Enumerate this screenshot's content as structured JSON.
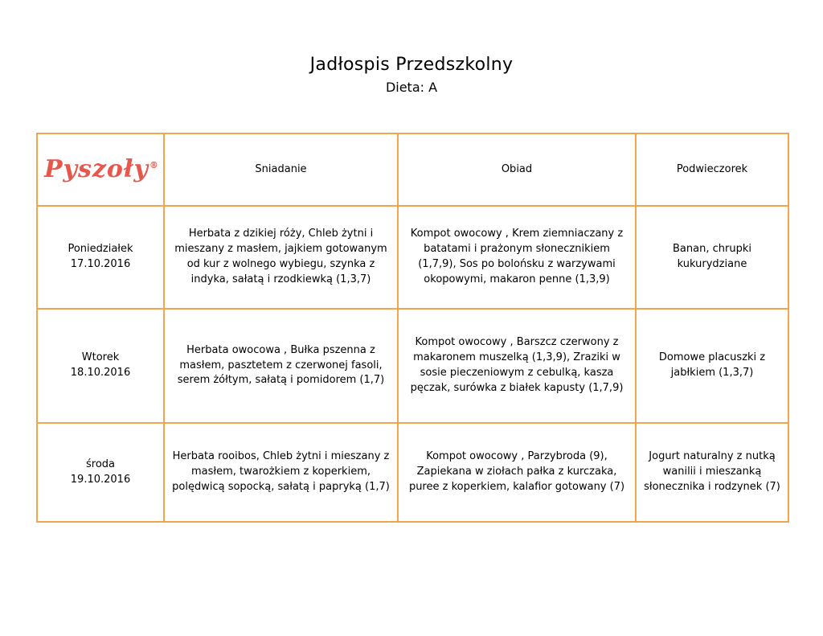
{
  "title": "Jadłospis Przedszkolny",
  "subtitle": "Dieta: A",
  "logo": {
    "text": "Pyszoły",
    "registered": "®",
    "color": "#e8574c"
  },
  "colors": {
    "table_border": "#f2a44e",
    "text": "#000000",
    "background": "#ffffff"
  },
  "table": {
    "headers": [
      "Sniadanie",
      "Obiad",
      "Podwieczorek"
    ],
    "rows": [
      {
        "day": "Poniedziałek",
        "date": "17.10.2016",
        "breakfast": "Herbata z dzikiej róży, Chleb żytni i mieszany z masłem, jajkiem gotowanym od kur z wolnego wybiegu, szynka z indyka, sałatą i rzodkiewką (1,3,7)",
        "lunch": "Kompot owocowy , Krem ziemniaczany z batatami i prażonym słonecznikiem (1,7,9), Sos po bolońsku z warzywami okopowymi, makaron penne (1,3,9)",
        "snack": "Banan, chrupki kukurydziane"
      },
      {
        "day": "Wtorek",
        "date": "18.10.2016",
        "breakfast": "Herbata owocowa , Bułka pszenna z masłem, pasztetem z czerwonej fasoli, serem żółtym, sałatą i pomidorem (1,7)",
        "lunch": "Kompot owocowy , Barszcz czerwony z makaronem muszelką (1,3,9), Zraziki w sosie pieczeniowym z cebulką, kasza pęczak, surówka z białek kapusty (1,7,9)",
        "snack": "Domowe placuszki z jabłkiem (1,3,7)"
      },
      {
        "day": "środa",
        "date": "19.10.2016",
        "breakfast": "Herbata rooibos, Chleb żytni i mieszany z masłem, twarożkiem z koperkiem, polędwicą sopocką, sałatą i papryką (1,7)",
        "lunch": "Kompot owocowy , Parzybroda (9), Zapiekana w ziołach pałka z kurczaka, puree z koperkiem, kalafior gotowany (7)",
        "snack": "Jogurt naturalny z nutką wanilii i mieszanką słonecznika i rodzynek (7)"
      }
    ]
  }
}
